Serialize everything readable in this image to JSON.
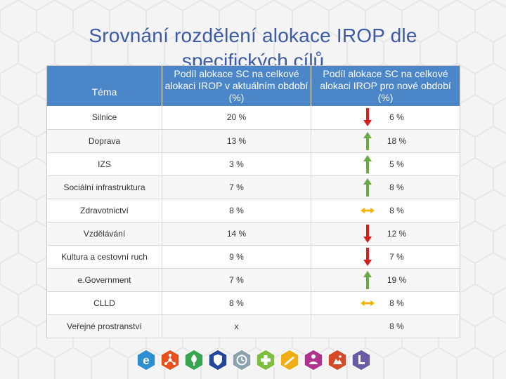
{
  "title": {
    "line1": "Srovnání rozdělení alokace IROP dle",
    "line2": "specifických cílů"
  },
  "table": {
    "headers": [
      "Téma",
      "Podíl alokace SC na celkové alokaci IROP v aktuálním období (%)",
      "Podíl alokace SC na celkové alokaci IROP pro nové období (%)"
    ],
    "rows": [
      {
        "topic": "Silnice",
        "current": "20 %",
        "new": "6 %",
        "trend": "down",
        "trend_icon": "arrow-down-icon"
      },
      {
        "topic": "Doprava",
        "current": "13 %",
        "new": "18 %",
        "trend": "up",
        "trend_icon": "arrow-up-icon"
      },
      {
        "topic": "IZS",
        "current": "3 %",
        "new": "5 %",
        "trend": "up",
        "trend_icon": "arrow-up-icon"
      },
      {
        "topic": "Sociální infrastruktura",
        "current": "7 %",
        "new": "8 %",
        "trend": "up",
        "trend_icon": "arrow-up-icon"
      },
      {
        "topic": "Zdravotnictví",
        "current": "8 %",
        "new": "8 %",
        "trend": "same",
        "trend_icon": "arrow-left-right-icon"
      },
      {
        "topic": "Vzdělávání",
        "current": "14 %",
        "new": "12 %",
        "trend": "down",
        "trend_icon": "arrow-down-icon"
      },
      {
        "topic": "Kultura a cestovní ruch",
        "current": "9 %",
        "new": "7 %",
        "trend": "down",
        "trend_icon": "arrow-down-icon"
      },
      {
        "topic": "e.Government",
        "current": "7 %",
        "new": "19 %",
        "trend": "up",
        "trend_icon": "arrow-up-icon"
      },
      {
        "topic": "CLLD",
        "current": "8 %",
        "new": "8 %",
        "trend": "same",
        "trend_icon": "arrow-left-right-icon"
      },
      {
        "topic": "Veřejné prostranství",
        "current": "x",
        "new": "8 %",
        "trend": "none",
        "trend_icon": ""
      }
    ]
  },
  "colors": {
    "title": "#3c5aa6",
    "header_bg": "#4a86c8",
    "arrow_up": "#6aaa46",
    "arrow_down": "#d62020",
    "arrow_same": "#f2b400"
  },
  "footer_icons": [
    {
      "name": "egovernment-icon",
      "color": "#2f8fd1",
      "glyph": "e"
    },
    {
      "name": "transport-network-icon",
      "color": "#e8501e",
      "glyph": "network"
    },
    {
      "name": "tree-icon",
      "color": "#3aa551",
      "glyph": "tree"
    },
    {
      "name": "shield-icon",
      "color": "#22479a",
      "glyph": "shield"
    },
    {
      "name": "clock-icon",
      "color": "#8ca2ad",
      "glyph": "clock"
    },
    {
      "name": "health-cross-icon",
      "color": "#7cbf3e",
      "glyph": "cross"
    },
    {
      "name": "pencil-icon",
      "color": "#f1ad13",
      "glyph": "pencil"
    },
    {
      "name": "people-icon",
      "color": "#b0338e",
      "glyph": "people"
    },
    {
      "name": "culture-icon",
      "color": "#d64a2a",
      "glyph": "culture"
    },
    {
      "name": "clld-icon",
      "color": "#6b5aa6",
      "glyph": "L"
    }
  ]
}
